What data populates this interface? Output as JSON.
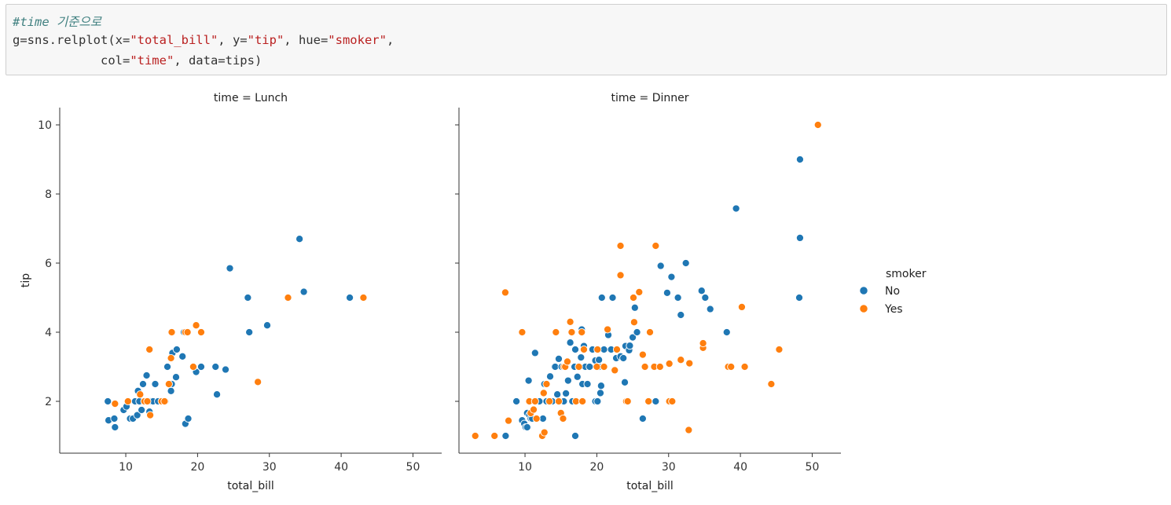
{
  "code": {
    "comment": "#time 기준으로",
    "line2": {
      "prefix": "g=sns.relplot(x=",
      "s1": "\"total_bill\"",
      "mid1": ", y=",
      "s2": "\"tip\"",
      "mid2": ", hue=",
      "s3": "\"smoker\"",
      "end": ","
    },
    "line3": {
      "indent": "            col=",
      "s1": "\"time\"",
      "end": ", data=tips)"
    }
  },
  "colors": {
    "No": "#1f77b4",
    "Yes": "#ff7f0e"
  },
  "chart_data": {
    "type": "scatter",
    "xlabel": "total_bill",
    "ylabel": "tip",
    "xticks": [
      10,
      20,
      30,
      40,
      50
    ],
    "yticks": [
      2,
      4,
      6,
      8,
      10
    ],
    "xlim": [
      0.8,
      54
    ],
    "ylim": [
      0.5,
      10.5
    ],
    "legend": {
      "title": "smoker",
      "entries": [
        "No",
        "Yes"
      ],
      "placement": "right"
    },
    "panels": [
      {
        "title": "time = Lunch",
        "series": [
          {
            "name": "No",
            "points": [
              [
                7.5,
                2.0
              ],
              [
                7.6,
                1.45
              ],
              [
                8.4,
                1.5
              ],
              [
                8.5,
                1.25
              ],
              [
                9.7,
                1.75
              ],
              [
                10.1,
                1.85
              ],
              [
                10.6,
                1.5
              ],
              [
                11.0,
                1.5
              ],
              [
                11.3,
                2.0
              ],
              [
                11.6,
                1.6
              ],
              [
                11.7,
                2.3
              ],
              [
                11.9,
                2.0
              ],
              [
                12.2,
                1.75
              ],
              [
                12.4,
                2.5
              ],
              [
                12.6,
                2.0
              ],
              [
                12.9,
                2.75
              ],
              [
                13.1,
                2.0
              ],
              [
                13.3,
                1.7
              ],
              [
                13.4,
                2.0
              ],
              [
                13.8,
                2.0
              ],
              [
                14.1,
                2.5
              ],
              [
                14.5,
                2.0
              ],
              [
                15.5,
                2.0
              ],
              [
                15.8,
                3.0
              ],
              [
                16.3,
                2.3
              ],
              [
                16.4,
                2.5
              ],
              [
                16.5,
                3.4
              ],
              [
                17.1,
                3.5
              ],
              [
                17.0,
                2.7
              ],
              [
                17.9,
                3.3
              ],
              [
                18.1,
                4.0
              ],
              [
                18.3,
                1.35
              ],
              [
                18.7,
                1.5
              ],
              [
                19.8,
                2.85
              ],
              [
                20.5,
                3.0
              ],
              [
                22.5,
                3.0
              ],
              [
                22.7,
                2.2
              ],
              [
                23.9,
                2.92
              ],
              [
                24.5,
                5.85
              ],
              [
                27.0,
                5.0
              ],
              [
                27.2,
                4.0
              ],
              [
                29.7,
                4.2
              ],
              [
                34.2,
                6.7
              ],
              [
                34.8,
                5.17
              ],
              [
                41.2,
                5.0
              ]
            ]
          },
          {
            "name": "Yes",
            "points": [
              [
                8.5,
                1.93
              ],
              [
                10.3,
                2.0
              ],
              [
                12.0,
                2.2
              ],
              [
                12.6,
                2.0
              ],
              [
                13.0,
                2.0
              ],
              [
                13.3,
                3.5
              ],
              [
                13.4,
                1.6
              ],
              [
                15.0,
                2.0
              ],
              [
                15.4,
                2.0
              ],
              [
                16.0,
                2.5
              ],
              [
                16.3,
                3.25
              ],
              [
                16.4,
                4.0
              ],
              [
                18.3,
                4.0
              ],
              [
                18.6,
                4.0
              ],
              [
                19.4,
                3.0
              ],
              [
                19.8,
                4.2
              ],
              [
                20.5,
                4.0
              ],
              [
                28.4,
                2.56
              ],
              [
                32.6,
                5.0
              ],
              [
                43.1,
                5.0
              ]
            ]
          }
        ]
      },
      {
        "title": "time = Dinner",
        "series": [
          {
            "name": "No",
            "points": [
              [
                7.3,
                1.0
              ],
              [
                8.8,
                2.0
              ],
              [
                9.6,
                1.45
              ],
              [
                9.9,
                1.35
              ],
              [
                10.1,
                1.25
              ],
              [
                10.3,
                1.66
              ],
              [
                10.3,
                1.25
              ],
              [
                10.5,
                2.6
              ],
              [
                10.6,
                1.6
              ],
              [
                10.8,
                1.5
              ],
              [
                11.0,
                1.5
              ],
              [
                11.4,
                3.4
              ],
              [
                11.6,
                2.0
              ],
              [
                12.0,
                2.0
              ],
              [
                12.5,
                1.5
              ],
              [
                12.7,
                2.5
              ],
              [
                13.0,
                2.0
              ],
              [
                13.4,
                2.0
              ],
              [
                13.5,
                2.72
              ],
              [
                13.8,
                2.0
              ],
              [
                14.1,
                3.0
              ],
              [
                14.2,
                3.0
              ],
              [
                14.5,
                2.2
              ],
              [
                14.7,
                3.23
              ],
              [
                14.9,
                2.0
              ],
              [
                15.1,
                3.0
              ],
              [
                15.4,
                2.0
              ],
              [
                15.7,
                2.23
              ],
              [
                16.0,
                2.6
              ],
              [
                16.3,
                3.7
              ],
              [
                16.6,
                2.0
              ],
              [
                16.9,
                3.0
              ],
              [
                17.0,
                1.0
              ],
              [
                17.0,
                3.5
              ],
              [
                17.3,
                2.71
              ],
              [
                17.5,
                3.0
              ],
              [
                17.6,
                3.0
              ],
              [
                17.8,
                3.27
              ],
              [
                17.9,
                4.08
              ],
              [
                18.0,
                2.5
              ],
              [
                18.2,
                3.6
              ],
              [
                18.3,
                3.0
              ],
              [
                18.4,
                3.0
              ],
              [
                18.7,
                2.5
              ],
              [
                19.0,
                3.0
              ],
              [
                19.4,
                3.5
              ],
              [
                19.8,
                2.0
              ],
              [
                19.8,
                3.18
              ],
              [
                20.1,
                2.0
              ],
              [
                20.3,
                3.2
              ],
              [
                20.3,
                3.0
              ],
              [
                20.5,
                2.24
              ],
              [
                20.6,
                2.45
              ],
              [
                20.7,
                5.0
              ],
              [
                21.0,
                3.5
              ],
              [
                21.5,
                4.05
              ],
              [
                21.6,
                3.92
              ],
              [
                22.0,
                3.5
              ],
              [
                22.2,
                5.0
              ],
              [
                22.7,
                3.25
              ],
              [
                23.3,
                3.3
              ],
              [
                23.7,
                3.25
              ],
              [
                23.9,
                2.55
              ],
              [
                24.0,
                3.6
              ],
              [
                24.3,
                2.0
              ],
              [
                24.5,
                3.48
              ],
              [
                24.6,
                3.61
              ],
              [
                25.0,
                3.85
              ],
              [
                25.3,
                4.71
              ],
              [
                25.6,
                4.0
              ],
              [
                26.4,
                1.5
              ],
              [
                28.2,
                2.0
              ],
              [
                28.9,
                5.92
              ],
              [
                29.8,
                5.14
              ],
              [
                30.4,
                5.6
              ],
              [
                31.3,
                5.0
              ],
              [
                31.7,
                4.5
              ],
              [
                32.4,
                6.0
              ],
              [
                34.6,
                5.2
              ],
              [
                35.1,
                5.0
              ],
              [
                35.8,
                4.67
              ],
              [
                38.1,
                4.0
              ],
              [
                39.4,
                7.58
              ],
              [
                48.2,
                5.0
              ],
              [
                48.3,
                6.73
              ],
              [
                48.3,
                9.0
              ]
            ]
          },
          {
            "name": "Yes",
            "points": [
              [
                3.07,
                1.0
              ],
              [
                5.75,
                1.0
              ],
              [
                7.25,
                5.15
              ],
              [
                7.7,
                1.44
              ],
              [
                9.6,
                4.0
              ],
              [
                10.6,
                2.0
              ],
              [
                10.8,
                1.66
              ],
              [
                11.2,
                1.76
              ],
              [
                11.4,
                2.0
              ],
              [
                11.6,
                1.5
              ],
              [
                12.4,
                1.0
              ],
              [
                12.6,
                2.24
              ],
              [
                12.7,
                1.1
              ],
              [
                13.0,
                2.5
              ],
              [
                13.4,
                2.0
              ],
              [
                14.3,
                4.0
              ],
              [
                14.7,
                2.0
              ],
              [
                15.0,
                1.66
              ],
              [
                15.3,
                1.5
              ],
              [
                15.4,
                3.0
              ],
              [
                15.6,
                3.0
              ],
              [
                15.9,
                3.15
              ],
              [
                16.3,
                4.3
              ],
              [
                16.5,
                4.0
              ],
              [
                17.1,
                2.0
              ],
              [
                17.5,
                3.0
              ],
              [
                17.9,
                4.0
              ],
              [
                18.0,
                2.0
              ],
              [
                18.2,
                3.5
              ],
              [
                20.0,
                3.0
              ],
              [
                20.1,
                3.5
              ],
              [
                21.0,
                3.0
              ],
              [
                21.5,
                4.08
              ],
              [
                22.5,
                2.9
              ],
              [
                22.8,
                3.5
              ],
              [
                23.3,
                6.5
              ],
              [
                23.3,
                5.65
              ],
              [
                24.1,
                2.0
              ],
              [
                24.3,
                2.0
              ],
              [
                25.1,
                5.0
              ],
              [
                25.2,
                4.29
              ],
              [
                25.9,
                5.16
              ],
              [
                26.4,
                3.35
              ],
              [
                26.7,
                3.0
              ],
              [
                27.2,
                2.0
              ],
              [
                27.4,
                4.0
              ],
              [
                28.0,
                3.0
              ],
              [
                28.2,
                6.5
              ],
              [
                28.8,
                3.0
              ],
              [
                30.1,
                2.0
              ],
              [
                30.1,
                3.09
              ],
              [
                30.5,
                2.0
              ],
              [
                31.7,
                3.2
              ],
              [
                32.8,
                1.17
              ],
              [
                32.9,
                3.1
              ],
              [
                34.8,
                3.55
              ],
              [
                34.8,
                3.68
              ],
              [
                38.3,
                3.0
              ],
              [
                38.7,
                3.0
              ],
              [
                40.2,
                4.73
              ],
              [
                40.6,
                3.0
              ],
              [
                44.3,
                2.5
              ],
              [
                45.4,
                3.5
              ],
              [
                50.8,
                10.0
              ]
            ]
          }
        ]
      }
    ]
  }
}
